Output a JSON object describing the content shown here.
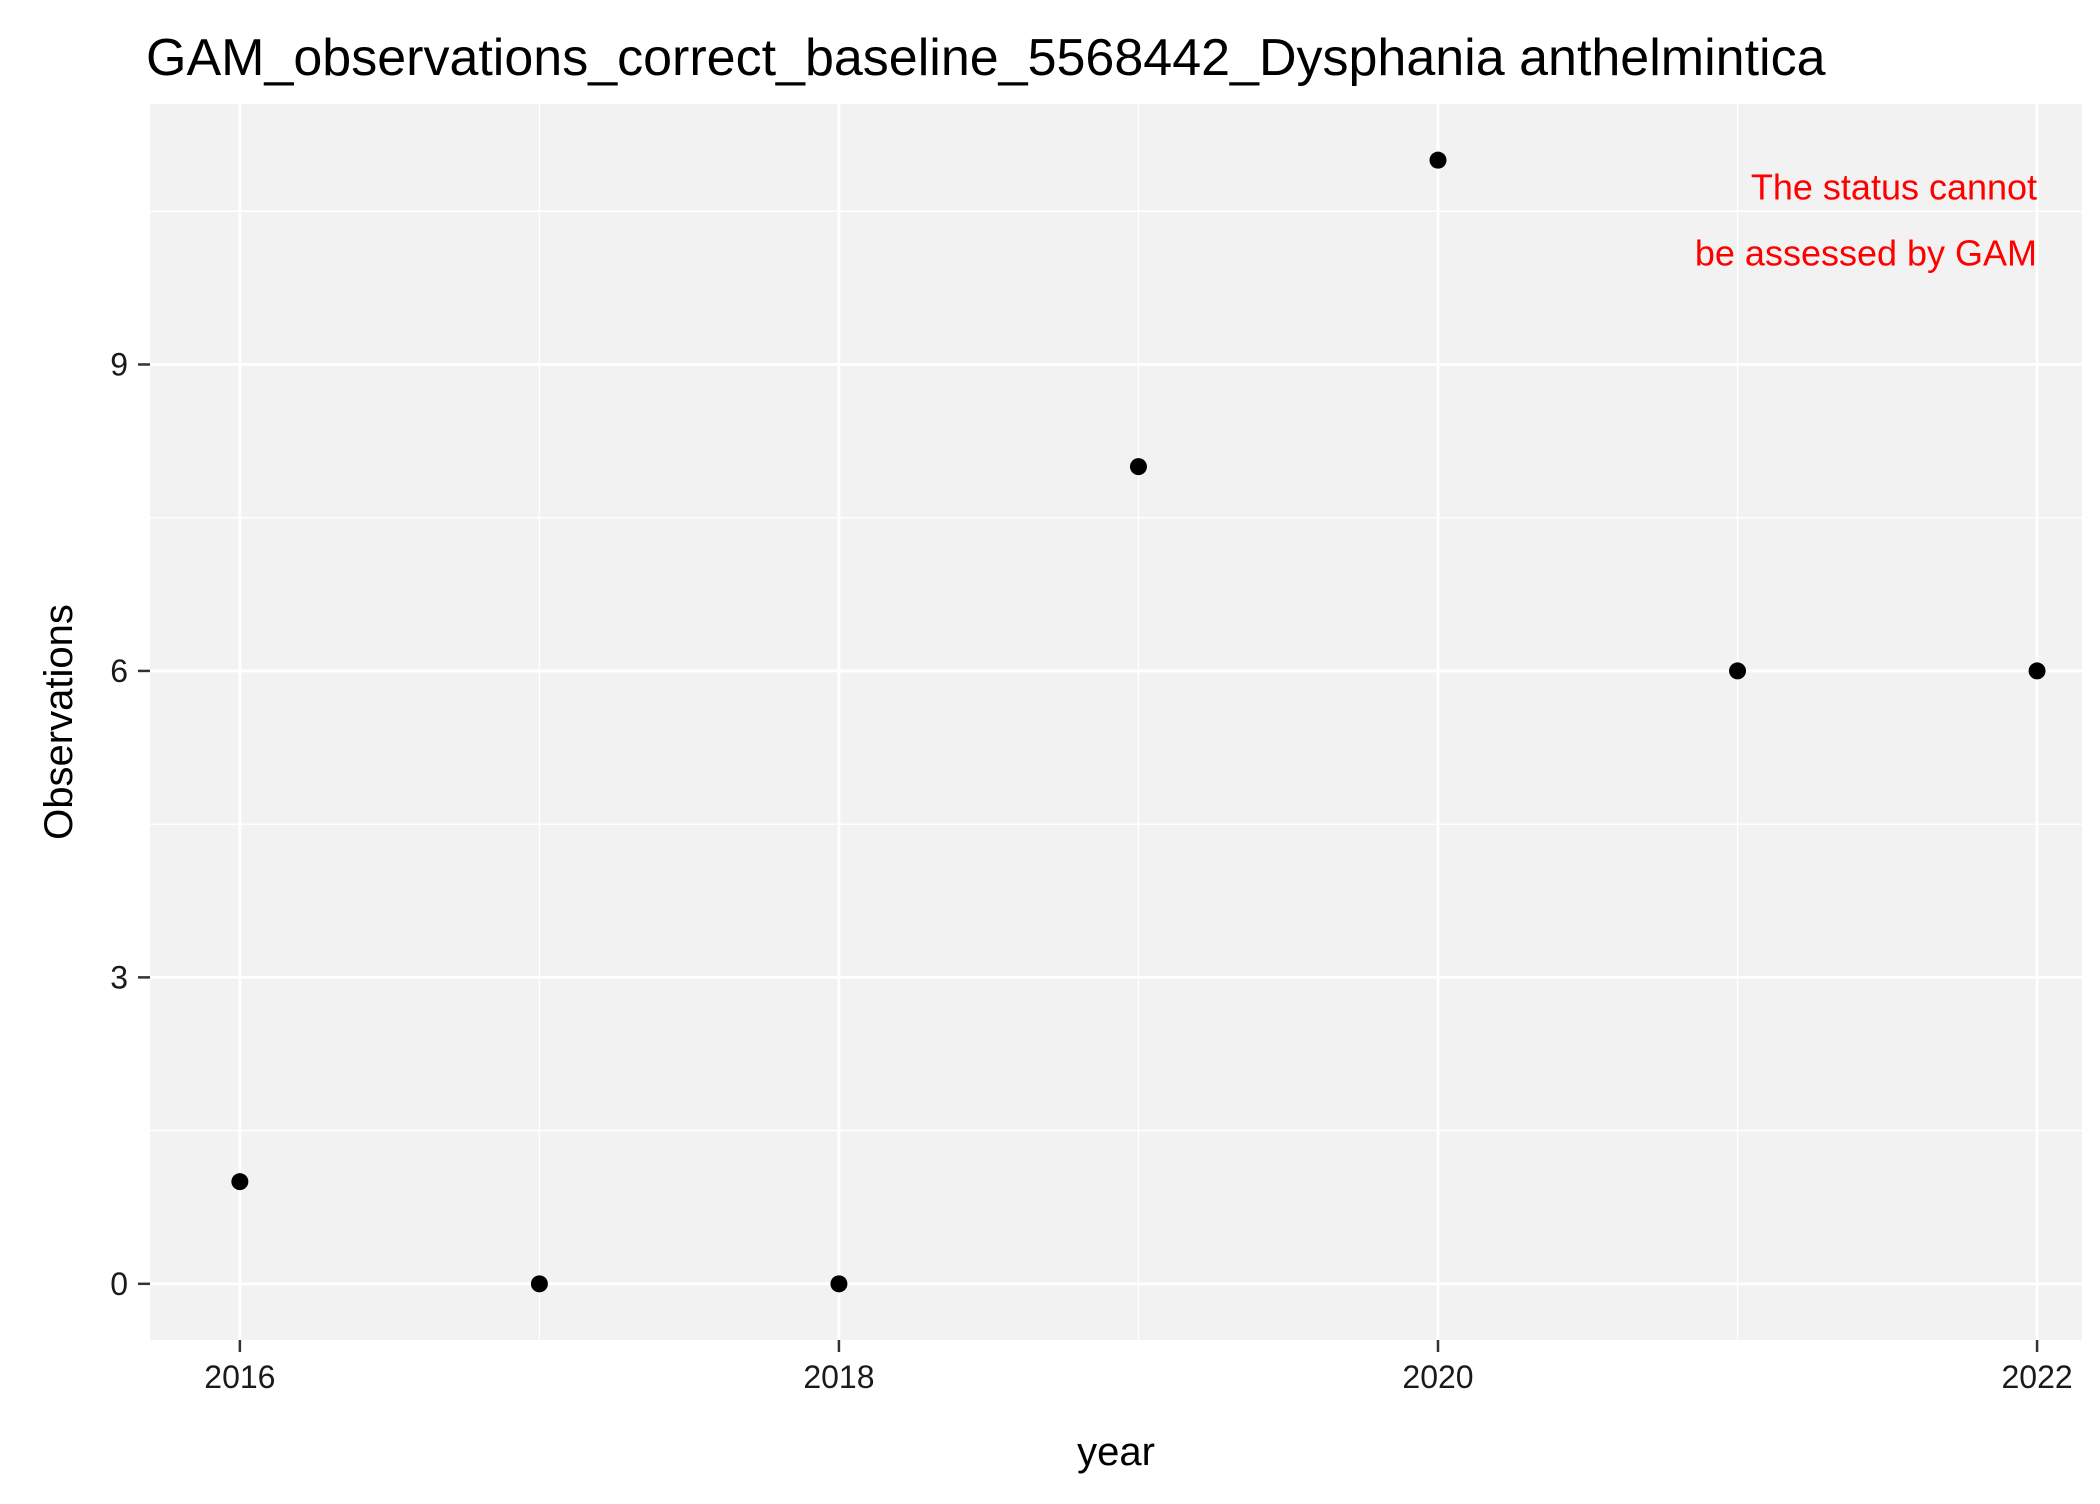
{
  "chart_data": {
    "type": "scatter",
    "title": "GAM_observations_correct_baseline_5568442_Dysphania anthelmintica",
    "xlabel": "year",
    "ylabel": "Observations",
    "x": [
      2016,
      2017,
      2018,
      2019,
      2020,
      2021,
      2022
    ],
    "y": [
      1,
      0,
      0,
      8,
      11,
      6,
      6
    ],
    "xlim": [
      2015.7,
      2022.15
    ],
    "ylim": [
      -0.55,
      11.55
    ],
    "x_ticks": [
      2016,
      2018,
      2020,
      2022
    ],
    "y_ticks": [
      0,
      3,
      6,
      9
    ],
    "x_tick_labels": [
      "2016",
      "2018",
      "2020",
      "2022"
    ],
    "y_tick_labels": [
      "0",
      "3",
      "6",
      "9"
    ],
    "x_minor_ticks": [
      2017,
      2019,
      2021
    ],
    "y_minor_ticks": [
      1.5,
      4.5,
      7.5,
      10.5
    ],
    "grid": true,
    "legend": "none",
    "annotation": {
      "lines": [
        "The status cannot",
        "be assessed by GAM"
      ],
      "color": "#ff0000",
      "anchor_x": 2022,
      "anchor_y": 10.9
    },
    "colors": {
      "panel_background": "#f2f2f2",
      "grid": "#ffffff",
      "point": "#000000"
    }
  }
}
